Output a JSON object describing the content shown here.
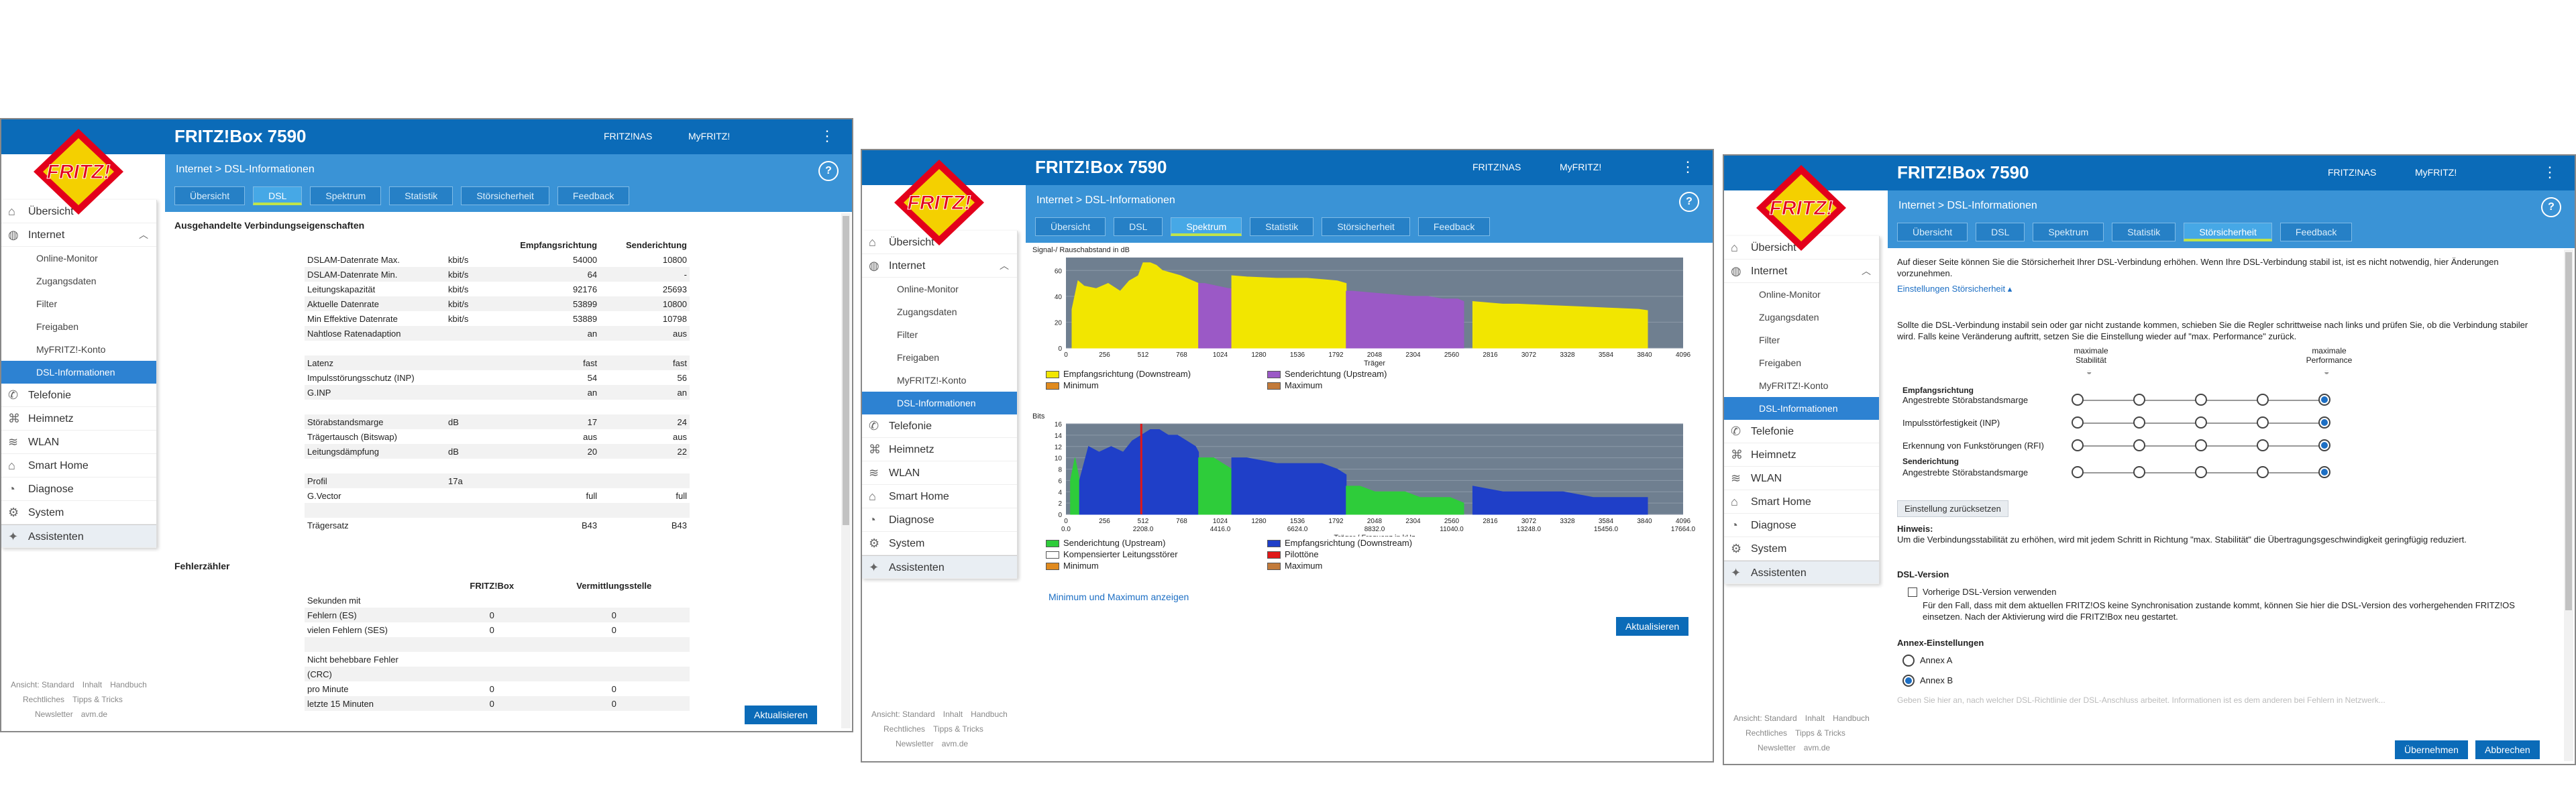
{
  "brand": "FRITZ!Box 7590",
  "logo_text": "FRITZ!",
  "header_links": {
    "nas": "FRITZ!NAS",
    "myfritz": "MyFRITZ!"
  },
  "breadcrumb": "Internet > DSL-Informationen",
  "tabs": [
    "Übersicht",
    "DSL",
    "Spektrum",
    "Statistik",
    "Störsicherheit",
    "Feedback"
  ],
  "sidebar": {
    "items": [
      {
        "label": "Übersicht",
        "icon": "home-icon"
      },
      {
        "label": "Internet",
        "icon": "globe-icon"
      },
      {
        "label": "Online-Monitor"
      },
      {
        "label": "Zugangsdaten"
      },
      {
        "label": "Filter"
      },
      {
        "label": "Freigaben"
      },
      {
        "label": "MyFRITZ!-Konto"
      },
      {
        "label": "DSL-Informationen"
      },
      {
        "label": "Telefonie",
        "icon": "phone-icon"
      },
      {
        "label": "Heimnetz",
        "icon": "network-icon"
      },
      {
        "label": "WLAN",
        "icon": "wifi-icon"
      },
      {
        "label": "Smart Home",
        "icon": "smart-home-icon"
      },
      {
        "label": "Diagnose",
        "icon": "diagnose-icon"
      },
      {
        "label": "System",
        "icon": "system-icon"
      },
      {
        "label": "Assistenten",
        "icon": "wizard-icon"
      }
    ]
  },
  "footer": {
    "l1": [
      "Ansicht: Standard",
      "Inhalt",
      "Handbuch"
    ],
    "l2": [
      "Rechtliches",
      "Tipps & Tricks"
    ],
    "l3": [
      "Newsletter",
      "avm.de"
    ]
  },
  "buttons": {
    "refresh": "Aktualisieren",
    "apply": "Übernehmen",
    "cancel": "Abbrechen",
    "reset": "Einstellung zurücksetzen"
  },
  "dsl": {
    "section_title": "Ausgehandelte Verbindungseigenschaften",
    "col_down": "Empfangsrichtung",
    "col_up": "Senderichtung",
    "rows": [
      [
        "DSLAM-Datenrate Max.",
        "kbit/s",
        "54000",
        "10800"
      ],
      [
        "DSLAM-Datenrate Min.",
        "kbit/s",
        "64",
        "-"
      ],
      [
        "Leitungskapazität",
        "kbit/s",
        "92176",
        "25693"
      ],
      [
        "Aktuelle Datenrate",
        "kbit/s",
        "53899",
        "10800"
      ],
      [
        "Min Effektive Datenrate",
        "kbit/s",
        "53889",
        "10798"
      ],
      [
        "Nahtlose Ratenadaption",
        "",
        "an",
        "aus"
      ],
      [
        "",
        "",
        "",
        ""
      ],
      [
        "Latenz",
        "",
        "fast",
        "fast"
      ],
      [
        "Impulsstörungsschutz (INP)",
        "",
        "54",
        "56"
      ],
      [
        "G.INP",
        "",
        "an",
        "an"
      ],
      [
        "",
        "",
        "",
        ""
      ],
      [
        "Störabstandsmarge",
        "dB",
        "17",
        "24"
      ],
      [
        "Trägertausch (Bitswap)",
        "",
        "aus",
        "aus"
      ],
      [
        "Leitungsdämpfung",
        "dB",
        "20",
        "22"
      ],
      [
        "",
        "",
        "",
        ""
      ],
      [
        "Profil",
        "17a",
        "",
        ""
      ],
      [
        "G.Vector",
        "",
        "full",
        "full"
      ],
      [
        "",
        "",
        "",
        ""
      ],
      [
        "Trägersatz",
        "",
        "B43",
        "B43"
      ]
    ],
    "errors_title": "Fehlerzähler",
    "err_col_box": "FRITZ!Box",
    "err_col_exch": "Vermittlungsstelle",
    "err_rows": [
      [
        "Sekunden mit",
        "",
        ""
      ],
      [
        "Fehlern (ES)",
        "0",
        "0"
      ],
      [
        "vielen Fehlern (SES)",
        "0",
        "0"
      ],
      [
        "",
        "",
        ""
      ],
      [
        "Nicht behebbare Fehler",
        "",
        ""
      ],
      [
        "(CRC)",
        "",
        ""
      ],
      [
        "pro Minute",
        "0",
        "0"
      ],
      [
        "letzte 15 Minuten",
        "0",
        "0"
      ]
    ]
  },
  "spectrum": {
    "top_ylabel": "Signal-/ Rauschabstand in dB",
    "bottom_ylabel": "Bits",
    "top_xlabel": "Träger",
    "bottom_xlabel": "Träger / Frequenz in kHz",
    "legend_top": [
      "Empfangsrichtung (Downstream)",
      "Senderichtung (Upstream)",
      "Minimum",
      "Maximum"
    ],
    "legend_bottom": [
      "Senderichtung (Upstream)",
      "Empfangsrichtung (Downstream)",
      "Kompensierter Leitungsstörer",
      "Pilottöne",
      "Minimum",
      "Maximum"
    ],
    "minmax_link": "Minimum und Maximum anzeigen"
  },
  "chart_data": [
    {
      "type": "area",
      "title": "",
      "ylabel": "Signal-/ Rauschabstand in dB",
      "xlabel": "Träger",
      "x_ticks": [
        0,
        256,
        512,
        768,
        1024,
        1280,
        1536,
        1792,
        2048,
        2304,
        2560,
        2816,
        3072,
        3328,
        3584,
        3840,
        4096
      ],
      "y_ticks": [
        0,
        20,
        40,
        60
      ],
      "xlim": [
        0,
        4096
      ],
      "ylim": [
        0,
        70
      ],
      "series": [
        {
          "name": "Empfangsrichtung (Downstream)",
          "color": "#f2e600",
          "x": [
            40,
            80,
            120,
            200,
            280,
            360,
            420,
            480,
            512,
            560,
            600,
            640,
            700,
            760,
            840,
            880,
            900
          ],
          "y": [
            30,
            52,
            48,
            46,
            50,
            44,
            52,
            56,
            66,
            66,
            64,
            60,
            58,
            56,
            52,
            50,
            48
          ]
        },
        {
          "name": "Senderichtung (Upstream)",
          "color": "#9b59c6",
          "x": [
            880,
            920,
            960,
            1000,
            1040,
            1080,
            1100
          ],
          "y": [
            50,
            50,
            49,
            48,
            47,
            46,
            46
          ]
        },
        {
          "name": "Empfangsrichtung (Downstream)",
          "color": "#f2e600",
          "x": [
            1100,
            1200,
            1400,
            1600,
            1700,
            1800,
            1860
          ],
          "y": [
            56,
            55,
            54,
            54,
            53,
            52,
            50
          ]
        },
        {
          "name": "Senderichtung (Upstream)",
          "color": "#9b59c6",
          "x": [
            1860,
            1900,
            2000,
            2100,
            2200,
            2300,
            2400,
            2500,
            2600,
            2640
          ],
          "y": [
            44,
            44,
            43,
            42,
            41,
            40,
            40,
            38,
            38,
            36
          ]
        },
        {
          "name": "Empfangsrichtung (Downstream)",
          "color": "#f2e600",
          "x": [
            2700,
            2800,
            2900,
            3000,
            3200,
            3400,
            3600,
            3800,
            3860
          ],
          "y": [
            36,
            35,
            34,
            34,
            33,
            32,
            31,
            30,
            29
          ]
        }
      ]
    },
    {
      "type": "area",
      "title": "",
      "ylabel": "Bits",
      "xlabel": "Träger / Frequenz in kHz",
      "x_ticks": [
        0,
        256,
        512,
        768,
        1024,
        1280,
        1536,
        1792,
        2048,
        2304,
        2560,
        2816,
        3072,
        3328,
        3584,
        3840,
        4096
      ],
      "x_tick_khz": [
        "0.0",
        "",
        "2208.0",
        "",
        "4416.0",
        "",
        "6624.0",
        "",
        "8832.0",
        "",
        "11040.0",
        "",
        "13248.0",
        "",
        "15456.0",
        "",
        "17664.0"
      ],
      "y_ticks": [
        0,
        2,
        4,
        6,
        8,
        10,
        12,
        14,
        16
      ],
      "xlim": [
        0,
        4096
      ],
      "ylim": [
        0,
        16
      ],
      "series": [
        {
          "name": "Senderichtung (Upstream)",
          "color": "#2ecc3a",
          "x": [
            30,
            60,
            90
          ],
          "y": [
            6,
            10,
            6
          ]
        },
        {
          "name": "Empfangsrichtung (Downstream)",
          "color": "#1f3fc8",
          "x": [
            90,
            150,
            220,
            300,
            380,
            440,
            500,
            560,
            620,
            680,
            740,
            800,
            860,
            880
          ],
          "y": [
            6,
            12,
            11,
            12,
            11,
            13,
            14,
            15,
            15,
            14,
            14,
            13,
            12,
            11
          ]
        },
        {
          "name": "Senderichtung (Upstream)",
          "color": "#2ecc3a",
          "x": [
            880,
            920,
            980,
            1040,
            1100
          ],
          "y": [
            10,
            10,
            10,
            9,
            8
          ]
        },
        {
          "name": "Empfangsrichtung (Downstream)",
          "color": "#1f3fc8",
          "x": [
            1100,
            1200,
            1400,
            1600,
            1700,
            1800,
            1860
          ],
          "y": [
            10,
            10,
            9,
            9,
            9,
            8,
            7
          ]
        },
        {
          "name": "Senderichtung (Upstream)",
          "color": "#2ecc3a",
          "x": [
            1860,
            1950,
            2050,
            2150,
            2250,
            2350,
            2450,
            2550,
            2640
          ],
          "y": [
            5,
            5,
            4,
            4,
            4,
            3,
            3,
            3,
            2
          ]
        },
        {
          "name": "Empfangsrichtung (Downstream)",
          "color": "#1f3fc8",
          "x": [
            2700,
            2900,
            3100,
            3300,
            3500,
            3700,
            3860
          ],
          "y": [
            5,
            4,
            4,
            4,
            3,
            3,
            3
          ]
        }
      ],
      "pilot_tone_x": [
        500
      ],
      "pilot_tone_color": "#e01818"
    }
  ],
  "noise": {
    "intro": "Auf dieser Seite können Sie die Störsicherheit Ihrer DSL-Verbindung erhöhen. Wenn Ihre DSL-Verbindung stabil ist, ist es nicht notwendig, hier Änderungen vorzunehmen.",
    "settings_link": "Einstellungen Störsicherheit",
    "explain": "Sollte die DSL-Verbindung instabil sein oder gar nicht zustande kommen, schieben Sie die Regler schrittweise nach links und prüfen Sie, ob die Verbindung stabiler wird. Falls keine Veränderung auftritt, setzen Sie die Einstellung wieder auf \"max. Performance\" zurück.",
    "max_stab": "maximale Stabilität",
    "max_perf": "maximale Performance",
    "down_title": "Empfangsrichtung",
    "up_title": "Senderichtung",
    "down_rows": [
      "Angestrebte Störabstandsmarge",
      "Impulsstörfestigkeit (INP)",
      "Erkennung von Funkstörungen (RFI)"
    ],
    "up_rows": [
      "Angestrebte Störabstandsmarge"
    ],
    "slider_level": 1,
    "hint_title": "Hinweis:",
    "hint": "Um die Verbindungsstabilität zu erhöhen, wird mit jedem Schritt in Richtung \"max. Stabilität\" die Übertragungsgeschwindigkeit geringfügig reduziert.",
    "dslver_title": "DSL-Version",
    "dslver_check": "Vorherige DSL-Version verwenden",
    "dslver_text": "Für den Fall, dass mit dem aktuellen FRITZ!OS keine Synchronisation zustande kommt, können Sie hier die DSL-Version des vorhergehenden FRITZ!OS einsetzen. Nach der Aktivierung wird die FRITZ!Box neu gestartet.",
    "annex_title": "Annex-Einstellungen",
    "annex_a": "Annex A",
    "annex_b": "Annex B",
    "bottom_note": "Geben Sie hier an, nach welcher DSL-Richtlinie der DSL-Anschluss arbeitet. Informationen ist es dem anderen bei Fehlern in Netzwerk..."
  }
}
